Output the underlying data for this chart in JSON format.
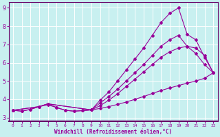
{
  "xlabel": "Windchill (Refroidissement éolien,°C)",
  "background_color": "#c8f0f0",
  "line_color": "#990099",
  "grid_color": "#ffffff",
  "xlim": [
    -0.5,
    23.5
  ],
  "ylim": [
    2.8,
    9.3
  ],
  "xticks": [
    0,
    1,
    2,
    3,
    4,
    5,
    6,
    7,
    8,
    9,
    10,
    11,
    12,
    13,
    14,
    15,
    16,
    17,
    18,
    19,
    20,
    21,
    22,
    23
  ],
  "yticks": [
    3,
    4,
    5,
    6,
    7,
    8,
    9
  ],
  "line_bottom_x": [
    0,
    1,
    2,
    3,
    4,
    5,
    6,
    7,
    8,
    9,
    10,
    11,
    12,
    13,
    14,
    15,
    16,
    17,
    18,
    19,
    20,
    21,
    22,
    23
  ],
  "line_bottom_y": [
    3.4,
    3.35,
    3.45,
    3.6,
    3.7,
    3.55,
    3.4,
    3.35,
    3.38,
    3.42,
    3.5,
    3.6,
    3.72,
    3.85,
    4.0,
    4.15,
    4.32,
    4.48,
    4.62,
    4.75,
    4.88,
    5.0,
    5.15,
    5.45
  ],
  "line_mid1_x": [
    0,
    1,
    2,
    3,
    4,
    5,
    6,
    7,
    8,
    9,
    10,
    11,
    12,
    13,
    14,
    15,
    16,
    17,
    18,
    19,
    20,
    21,
    22,
    23
  ],
  "line_mid1_y": [
    3.4,
    3.35,
    3.45,
    3.6,
    3.75,
    3.55,
    3.4,
    3.35,
    3.38,
    3.42,
    3.65,
    3.95,
    4.3,
    4.7,
    5.1,
    5.5,
    5.9,
    6.3,
    6.6,
    6.8,
    6.9,
    6.8,
    6.4,
    5.45
  ],
  "line_mid2_x": [
    0,
    3,
    4,
    9,
    10,
    11,
    12,
    13,
    14,
    15,
    16,
    17,
    18,
    19,
    20,
    21,
    22,
    23
  ],
  "line_mid2_y": [
    3.4,
    3.6,
    3.75,
    3.42,
    3.8,
    4.15,
    4.55,
    5.0,
    5.45,
    5.9,
    6.4,
    6.9,
    7.25,
    7.5,
    6.9,
    6.5,
    5.9,
    5.45
  ],
  "line_high_x": [
    0,
    3,
    4,
    9,
    10,
    11,
    12,
    13,
    14,
    15,
    16,
    17,
    18,
    19,
    20,
    21,
    22,
    23
  ],
  "line_high_y": [
    3.4,
    3.6,
    3.75,
    3.42,
    3.95,
    4.4,
    5.0,
    5.6,
    6.2,
    6.8,
    7.5,
    8.2,
    8.7,
    9.0,
    7.55,
    7.25,
    6.3,
    5.45
  ]
}
